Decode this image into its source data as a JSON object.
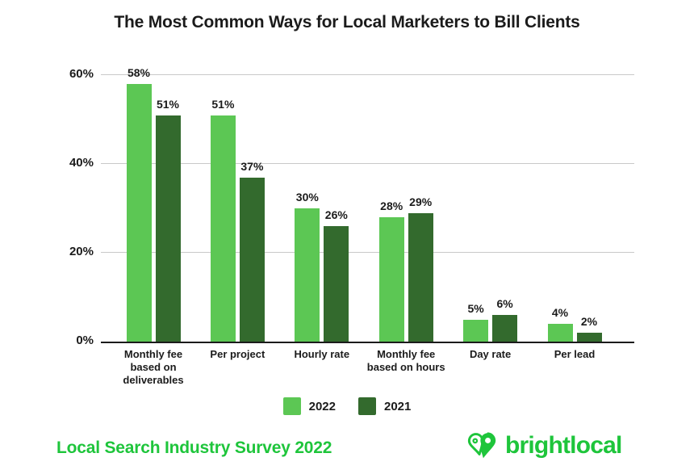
{
  "title": "The Most Common Ways for Local Marketers to Bill Clients",
  "chart_data": {
    "type": "bar",
    "title": "The Most Common Ways for Local Marketers to Bill Clients",
    "categories": [
      "Monthly fee based on deliverables",
      "Per project",
      "Hourly rate",
      "Monthly fee based on hours",
      "Day rate",
      "Per lead"
    ],
    "category_label_lines": [
      [
        "Monthly fee",
        "based on",
        "deliverables"
      ],
      [
        "Per project"
      ],
      [
        "Hourly rate"
      ],
      [
        "Monthly fee",
        "based on hours"
      ],
      [
        "Day rate"
      ],
      [
        "Per lead"
      ]
    ],
    "series": [
      {
        "name": "2022",
        "color": "#5CC754",
        "values": [
          58,
          51,
          30,
          28,
          5,
          4
        ]
      },
      {
        "name": "2021",
        "color": "#336A2D",
        "values": [
          51,
          37,
          26,
          29,
          6,
          2
        ]
      }
    ],
    "value_suffix": "%",
    "xlabel": "",
    "ylabel": "",
    "yticks": [
      0,
      20,
      40,
      60
    ],
    "ytick_labels": [
      "0%",
      "20%",
      "40%",
      "60%"
    ],
    "ylim": [
      0,
      64
    ],
    "grid": "horizontal",
    "legend_position": "bottom-center"
  },
  "legend": [
    {
      "label": "2022",
      "color": "#5CC754"
    },
    {
      "label": "2021",
      "color": "#336A2D"
    }
  ],
  "footer": {
    "survey_note": "Local Search Industry Survey 2022",
    "brand_name": "brightlocal"
  },
  "colors": {
    "bar_2022": "#5CC754",
    "bar_2021": "#336A2D",
    "brand_green": "#1EC53B",
    "gridline": "#C9C9C9",
    "axis_line": "#1B1B1B",
    "text": "#1B1B1B",
    "background": "#FFFFFF"
  }
}
